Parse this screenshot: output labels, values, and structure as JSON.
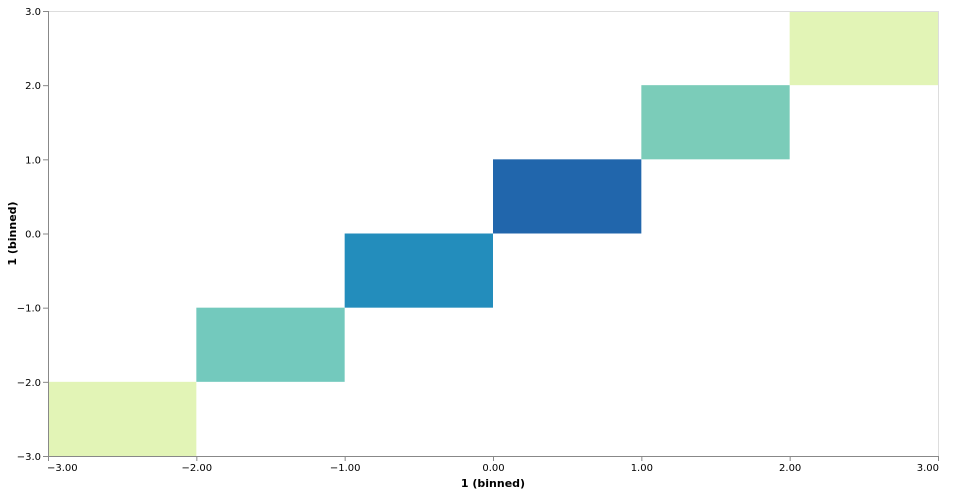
{
  "chart_data": {
    "type": "heatmap",
    "title": "",
    "xlabel": "1 (binned)",
    "ylabel": "1 (binned)",
    "xlim": [
      -3,
      3
    ],
    "ylim": [
      -3,
      3
    ],
    "x_ticks": [
      "−3.00",
      "−2.00",
      "−1.00",
      "0.00",
      "1.00",
      "2.00",
      "3.00"
    ],
    "y_ticks": [
      "−3.0",
      "−2.0",
      "−1.0",
      "0.0",
      "1.0",
      "2.0",
      "3.0"
    ],
    "grid": false,
    "legend": "none",
    "cells": [
      {
        "x_bin": [
          -3,
          -2
        ],
        "y_bin": [
          -3,
          -2
        ],
        "color": "#e2f4b6"
      },
      {
        "x_bin": [
          -2,
          -1
        ],
        "y_bin": [
          -2,
          -1
        ],
        "color": "#73c9bd"
      },
      {
        "x_bin": [
          -1,
          0
        ],
        "y_bin": [
          -1,
          0
        ],
        "color": "#238dbc"
      },
      {
        "x_bin": [
          0,
          1
        ],
        "y_bin": [
          0,
          1
        ],
        "color": "#2166ac"
      },
      {
        "x_bin": [
          1,
          2
        ],
        "y_bin": [
          1,
          2
        ],
        "color": "#7bccb9"
      },
      {
        "x_bin": [
          2,
          3
        ],
        "y_bin": [
          2,
          3
        ],
        "color": "#e2f4b6"
      }
    ]
  }
}
